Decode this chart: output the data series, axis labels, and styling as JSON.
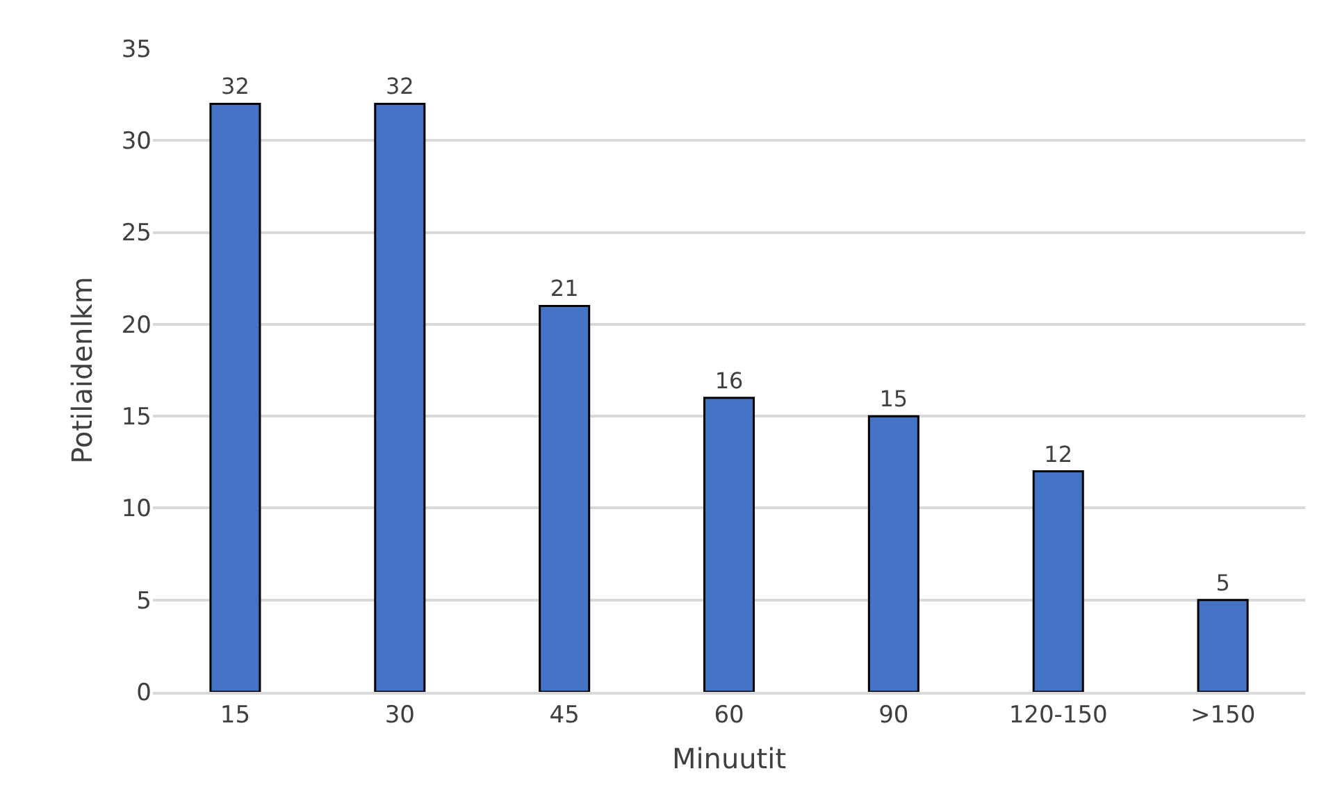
{
  "chart_data": {
    "type": "bar",
    "xlabel": "Minuutit",
    "ylabel": "Potilaidenlkm",
    "categories": [
      "15",
      "30",
      "45",
      "60",
      "90",
      "120-150",
      ">150"
    ],
    "values": [
      32,
      32,
      21,
      16,
      15,
      12,
      5
    ],
    "color": "#4472c4",
    "ylim": [
      0,
      35
    ],
    "yticks": [
      0,
      5,
      10,
      15,
      20,
      25,
      30,
      35
    ],
    "grid": "y",
    "data_labels": true
  }
}
